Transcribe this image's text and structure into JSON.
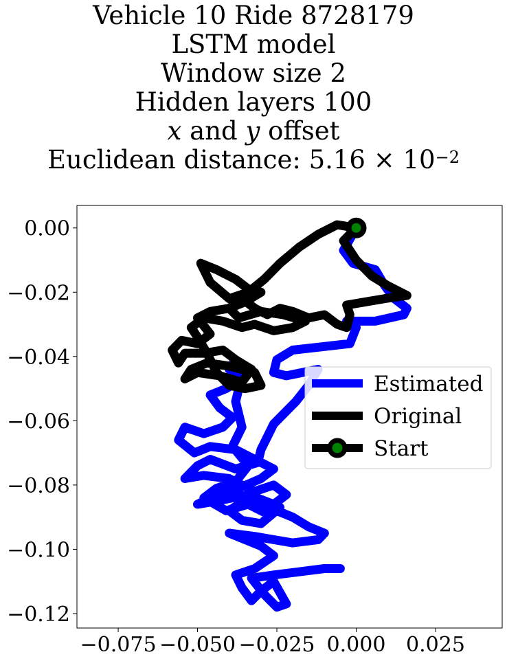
{
  "title": {
    "line1": "Vehicle 10 Ride 8728179",
    "line2": "LSTM model",
    "line3": "Window size 2",
    "line4": "Hidden layers 100",
    "line5_x": "x",
    "line5_and": " and ",
    "line5_y": "y",
    "line5_rest": " offset",
    "line6_prefix": "Euclidean distance: 5.16 × 10",
    "line6_exp": "−2"
  },
  "chart_data": {
    "type": "line",
    "title": "Vehicle 10 Ride 8728179 / LSTM model / Window size 2 / Hidden layers 100 / x and y offset / Euclidean distance: 5.16 × 10^−2",
    "xlabel": "",
    "ylabel": "",
    "xlim": [
      -0.088,
      0.046
    ],
    "ylim": [
      -0.1245,
      0.007
    ],
    "x_ticks": [
      -0.075,
      -0.05,
      -0.025,
      0.0,
      0.025
    ],
    "x_tick_labels": [
      "−0.075",
      "−0.050",
      "−0.025",
      "0.000",
      "0.025"
    ],
    "y_ticks": [
      0.0,
      -0.02,
      -0.04,
      -0.06,
      -0.08,
      -0.1,
      -0.12
    ],
    "y_tick_labels": [
      "0.00",
      "−0.02",
      "−0.04",
      "−0.06",
      "−0.08",
      "−0.10",
      "−0.12"
    ],
    "grid": false,
    "legend_position": "center-right",
    "series": [
      {
        "name": "Estimated",
        "color": "#0000ff",
        "points": [
          [
            0.0,
            0.0
          ],
          [
            -0.004,
            -0.007
          ],
          [
            -0.001,
            -0.011
          ],
          [
            0.006,
            -0.013
          ],
          [
            0.009,
            -0.018
          ],
          [
            0.012,
            -0.022
          ],
          [
            0.016,
            -0.025
          ],
          [
            0.015,
            -0.027
          ],
          [
            0.006,
            -0.029
          ],
          [
            -0.003,
            -0.029
          ],
          [
            0.0,
            -0.031
          ],
          [
            -0.002,
            -0.036
          ],
          [
            -0.011,
            -0.037
          ],
          [
            -0.02,
            -0.038
          ],
          [
            -0.025,
            -0.041
          ],
          [
            -0.026,
            -0.045
          ],
          [
            -0.022,
            -0.046
          ],
          [
            -0.012,
            -0.044
          ],
          [
            -0.015,
            -0.049
          ],
          [
            -0.019,
            -0.054
          ],
          [
            -0.026,
            -0.061
          ],
          [
            -0.03,
            -0.069
          ],
          [
            -0.031,
            -0.073
          ],
          [
            -0.038,
            -0.075
          ],
          [
            -0.046,
            -0.072
          ],
          [
            -0.05,
            -0.074
          ],
          [
            -0.054,
            -0.078
          ],
          [
            -0.048,
            -0.077
          ],
          [
            -0.04,
            -0.078
          ],
          [
            -0.032,
            -0.082
          ],
          [
            -0.026,
            -0.08
          ],
          [
            -0.022,
            -0.083
          ],
          [
            -0.026,
            -0.086
          ],
          [
            -0.034,
            -0.083
          ],
          [
            -0.044,
            -0.085
          ],
          [
            -0.05,
            -0.086
          ],
          [
            -0.046,
            -0.084
          ],
          [
            -0.037,
            -0.081
          ],
          [
            -0.03,
            -0.078
          ],
          [
            -0.026,
            -0.075
          ],
          [
            -0.032,
            -0.072
          ],
          [
            -0.038,
            -0.069
          ],
          [
            -0.046,
            -0.068
          ],
          [
            -0.051,
            -0.07
          ],
          [
            -0.056,
            -0.066
          ],
          [
            -0.054,
            -0.062
          ],
          [
            -0.048,
            -0.064
          ],
          [
            -0.042,
            -0.062
          ],
          [
            -0.039,
            -0.059
          ],
          [
            -0.043,
            -0.056
          ],
          [
            -0.046,
            -0.052
          ],
          [
            -0.041,
            -0.05
          ],
          [
            -0.036,
            -0.047
          ],
          [
            -0.04,
            -0.044
          ],
          [
            -0.038,
            -0.041
          ],
          [
            -0.036,
            -0.046
          ],
          [
            -0.038,
            -0.054
          ],
          [
            -0.036,
            -0.062
          ],
          [
            -0.039,
            -0.068
          ],
          [
            -0.034,
            -0.074
          ],
          [
            -0.038,
            -0.079
          ],
          [
            -0.044,
            -0.081
          ],
          [
            -0.048,
            -0.084
          ],
          [
            -0.041,
            -0.088
          ],
          [
            -0.034,
            -0.086
          ],
          [
            -0.028,
            -0.089
          ],
          [
            -0.024,
            -0.087
          ],
          [
            -0.03,
            -0.092
          ],
          [
            -0.036,
            -0.091
          ],
          [
            -0.04,
            -0.088
          ],
          [
            -0.034,
            -0.084
          ],
          [
            -0.03,
            -0.086
          ],
          [
            -0.02,
            -0.09
          ],
          [
            -0.015,
            -0.093
          ],
          [
            -0.01,
            -0.095
          ],
          [
            -0.012,
            -0.097
          ],
          [
            -0.02,
            -0.098
          ],
          [
            -0.032,
            -0.096
          ],
          [
            -0.04,
            -0.095
          ],
          [
            -0.03,
            -0.099
          ],
          [
            -0.026,
            -0.102
          ],
          [
            -0.032,
            -0.106
          ],
          [
            -0.038,
            -0.108
          ],
          [
            -0.036,
            -0.112
          ],
          [
            -0.033,
            -0.116
          ],
          [
            -0.03,
            -0.113
          ],
          [
            -0.026,
            -0.11
          ],
          [
            -0.022,
            -0.117
          ],
          [
            -0.025,
            -0.118
          ],
          [
            -0.029,
            -0.114
          ],
          [
            -0.033,
            -0.109
          ],
          [
            -0.026,
            -0.108
          ],
          [
            -0.018,
            -0.107
          ],
          [
            -0.01,
            -0.106
          ],
          [
            -0.005,
            -0.106
          ]
        ]
      },
      {
        "name": "Original",
        "color": "#000000",
        "points": [
          [
            0.0,
            0.0
          ],
          [
            -0.006,
            0.001
          ],
          [
            -0.012,
            -0.002
          ],
          [
            -0.018,
            -0.006
          ],
          [
            -0.024,
            -0.011
          ],
          [
            -0.029,
            -0.016
          ],
          [
            -0.034,
            -0.02
          ],
          [
            -0.04,
            -0.022
          ],
          [
            -0.046,
            -0.017
          ],
          [
            -0.049,
            -0.011
          ],
          [
            -0.044,
            -0.013
          ],
          [
            -0.038,
            -0.016
          ],
          [
            -0.034,
            -0.019
          ],
          [
            -0.03,
            -0.02
          ],
          [
            -0.035,
            -0.023
          ],
          [
            -0.04,
            -0.025
          ],
          [
            -0.046,
            -0.026
          ],
          [
            -0.05,
            -0.028
          ],
          [
            -0.046,
            -0.033
          ],
          [
            -0.05,
            -0.036
          ],
          [
            -0.055,
            -0.035
          ],
          [
            -0.058,
            -0.038
          ],
          [
            -0.056,
            -0.042
          ],
          [
            -0.054,
            -0.039
          ],
          [
            -0.048,
            -0.039
          ],
          [
            -0.042,
            -0.038
          ],
          [
            -0.038,
            -0.041
          ],
          [
            -0.033,
            -0.044
          ],
          [
            -0.036,
            -0.048
          ],
          [
            -0.043,
            -0.046
          ],
          [
            -0.05,
            -0.045
          ],
          [
            -0.054,
            -0.047
          ],
          [
            -0.052,
            -0.044
          ],
          [
            -0.047,
            -0.042
          ],
          [
            -0.04,
            -0.043
          ],
          [
            -0.032,
            -0.045
          ],
          [
            -0.03,
            -0.049
          ],
          [
            -0.035,
            -0.05
          ],
          [
            -0.04,
            -0.049
          ],
          [
            -0.044,
            -0.045
          ],
          [
            -0.047,
            -0.039
          ],
          [
            -0.05,
            -0.034
          ],
          [
            -0.052,
            -0.031
          ],
          [
            -0.048,
            -0.028
          ],
          [
            -0.042,
            -0.029
          ],
          [
            -0.036,
            -0.031
          ],
          [
            -0.032,
            -0.03
          ],
          [
            -0.026,
            -0.032
          ],
          [
            -0.02,
            -0.031
          ],
          [
            -0.016,
            -0.029
          ],
          [
            -0.023,
            -0.027
          ],
          [
            -0.03,
            -0.026
          ],
          [
            -0.037,
            -0.028
          ],
          [
            -0.04,
            -0.025
          ],
          [
            -0.036,
            -0.022
          ],
          [
            -0.032,
            -0.025
          ],
          [
            -0.028,
            -0.027
          ],
          [
            -0.024,
            -0.025
          ],
          [
            -0.02,
            -0.026
          ],
          [
            -0.015,
            -0.028
          ],
          [
            -0.01,
            -0.027
          ],
          [
            -0.006,
            -0.03
          ],
          [
            -0.003,
            -0.031
          ],
          [
            -0.002,
            -0.027
          ],
          [
            -0.003,
            -0.024
          ],
          [
            0.003,
            -0.023
          ],
          [
            0.009,
            -0.022
          ],
          [
            0.016,
            -0.021
          ],
          [
            0.01,
            -0.018
          ],
          [
            0.005,
            -0.015
          ],
          [
            0.0,
            -0.01
          ],
          [
            -0.004,
            -0.004
          ],
          [
            0.0,
            0.0
          ]
        ]
      }
    ],
    "start_point": {
      "name": "Start",
      "x": 0.0,
      "y": 0.0,
      "color": "#008000",
      "edge_color": "#000000"
    },
    "legend": [
      "Estimated",
      "Original",
      "Start"
    ]
  }
}
